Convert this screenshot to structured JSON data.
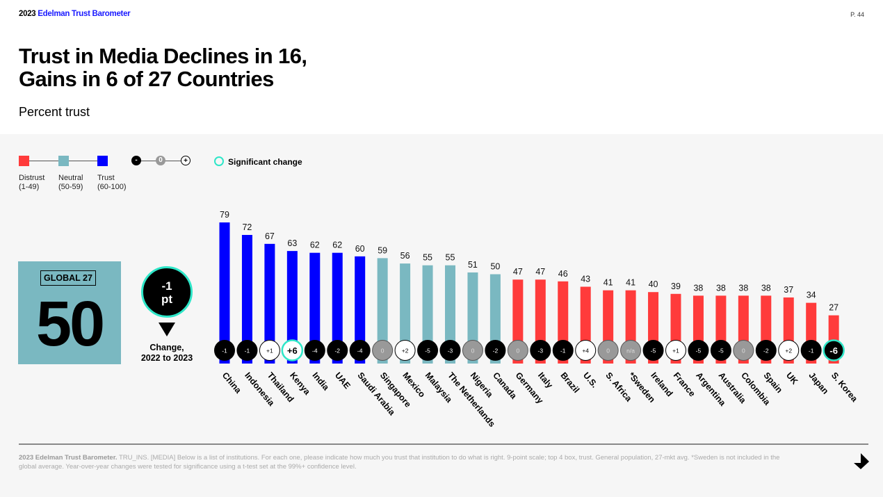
{
  "header": {
    "brand_year": "2023",
    "brand_name": "Edelman Trust Barometer",
    "page_number": "P. 44",
    "title_line1": "Trust in Media Declines in 16,",
    "title_line2": "Gains in 6 of 27 Countries",
    "subtitle": "Percent trust"
  },
  "legend": {
    "distrust": {
      "label": "Distrust",
      "range": "(1-49)",
      "color": "#ff3b3b"
    },
    "neutral": {
      "label": "Neutral",
      "range": "(50-59)",
      "color": "#7ab8c1"
    },
    "trust": {
      "label": "Trust",
      "range": "(60-100)",
      "color": "#0000ff"
    },
    "change_symbols": {
      "negative": "-",
      "zero": "0",
      "positive": "+"
    },
    "significant_change": "Significant change",
    "significant_color": "#2ee6c8"
  },
  "global": {
    "tag": "GLOBAL 27",
    "value": "50",
    "change_value": "-1",
    "change_unit": "pt",
    "change_label_line1": "Change,",
    "change_label_line2": "2022 to 2023"
  },
  "chart_data": {
    "type": "bar",
    "title": "Trust in Media Declines in 16, Gains in 6 of 27 Countries",
    "ylabel": "Percent trust",
    "ylim": [
      0,
      100
    ],
    "categories": [
      "China",
      "Indonesia",
      "Thailand",
      "Kenya",
      "India",
      "UAE",
      "Saudi Arabia",
      "Singapore",
      "Mexico",
      "Malaysia",
      "The Netherlands",
      "Nigeria",
      "Canada",
      "Germany",
      "Italy",
      "Brazil",
      "U.S.",
      "S. Africa",
      "*Sweden",
      "Ireland",
      "France",
      "Argentina",
      "Australia",
      "Colombia",
      "Spain",
      "UK",
      "Japan",
      "S. Korea"
    ],
    "values": [
      79,
      72,
      67,
      63,
      62,
      62,
      60,
      59,
      56,
      55,
      55,
      51,
      50,
      47,
      47,
      46,
      43,
      41,
      41,
      40,
      39,
      38,
      38,
      38,
      38,
      37,
      34,
      27
    ],
    "changes": [
      "-1",
      "-1",
      "+1",
      "+6",
      "-4",
      "-2",
      "-4",
      "0",
      "+2",
      "-5",
      "-3",
      "0",
      "-2",
      "0",
      "-3",
      "-1",
      "+4",
      "0",
      "n/a",
      "-5",
      "+1",
      "-5",
      "-5",
      "0",
      "-2",
      "+2",
      "-1",
      "-6"
    ],
    "significant": [
      false,
      false,
      false,
      true,
      false,
      false,
      false,
      false,
      false,
      false,
      false,
      false,
      false,
      false,
      false,
      false,
      false,
      false,
      false,
      false,
      false,
      false,
      false,
      false,
      false,
      false,
      false,
      true
    ],
    "thresholds": {
      "distrust_max": 49,
      "neutral_max": 59
    }
  },
  "footer": {
    "source_bold": "2023 Edelman Trust Barometer.",
    "source_text": " TRU_INS. [MEDIA] Below is a list of institutions. For each one, please indicate how much you trust that institution to do what is right. 9-point scale; top 4 box, trust. General population, 27-mkt avg. *Sweden is not included in the global average. Year-over-year changes were tested for significance using a t-test set at the 99%+ confidence level."
  }
}
